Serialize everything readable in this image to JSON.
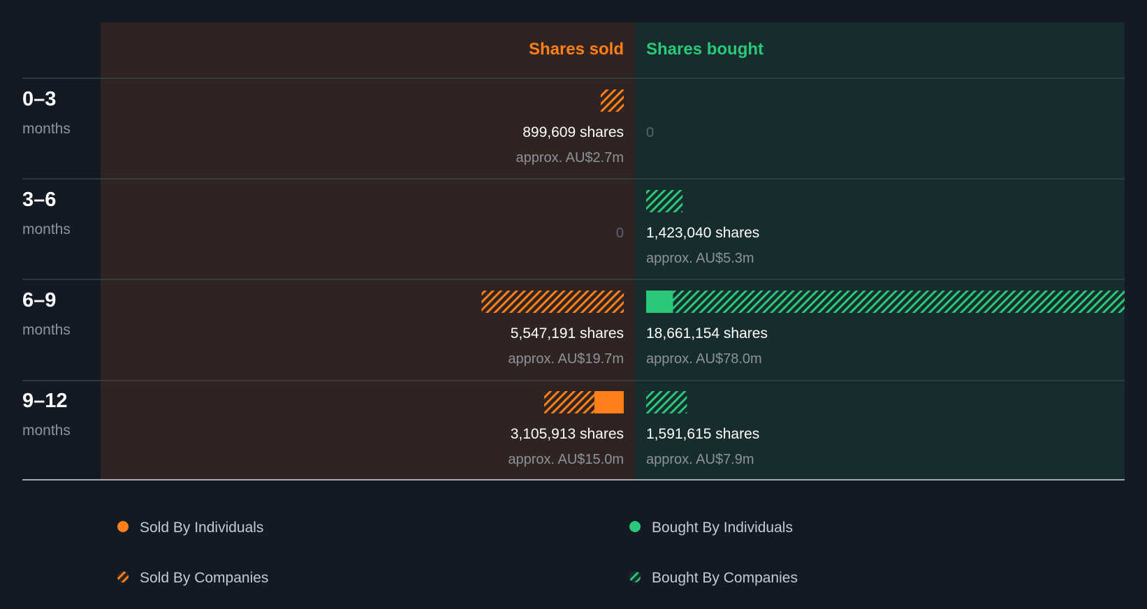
{
  "chart_data": {
    "type": "bar",
    "headers": {
      "sold": "Shares sold",
      "bought": "Shares bought"
    },
    "colors": {
      "sold": "#ff7f18",
      "bought": "#2ac97a",
      "sold_bg": "#2f2422",
      "bought_bg": "#172c2c",
      "page_bg": "#131a24"
    },
    "periods": [
      {
        "label": "0–3",
        "unit": "months",
        "sold": {
          "individuals": 0,
          "companies": 899609,
          "shares_label": "899,609 shares",
          "value_label": "approx. AU$2.7m"
        },
        "bought": {
          "individuals": 0,
          "companies": 0,
          "zero_label": "0"
        }
      },
      {
        "label": "3–6",
        "unit": "months",
        "sold": {
          "individuals": 0,
          "companies": 0,
          "zero_label": "0"
        },
        "bought": {
          "individuals": 0,
          "companies": 1423040,
          "shares_label": "1,423,040 shares",
          "value_label": "approx. AU$5.3m"
        }
      },
      {
        "label": "6–9",
        "unit": "months",
        "sold": {
          "individuals": 0,
          "companies": 5547191,
          "shares_label": "5,547,191 shares",
          "value_label": "approx. AU$19.7m"
        },
        "bought": {
          "individuals": 1050000,
          "companies": 17611154,
          "shares_label": "18,661,154 shares",
          "value_label": "approx. AU$78.0m"
        }
      },
      {
        "label": "9–12",
        "unit": "months",
        "sold": {
          "individuals": 1150000,
          "companies": 1955913,
          "shares_label": "3,105,913 shares",
          "value_label": "approx. AU$15.0m"
        },
        "bought": {
          "individuals": 0,
          "companies": 1591615,
          "shares_label": "1,591,615 shares",
          "value_label": "approx. AU$7.9m"
        }
      }
    ],
    "legend": [
      {
        "label": "Sold By Individuals",
        "side": "sold",
        "style": "solid"
      },
      {
        "label": "Sold By Companies",
        "side": "sold",
        "style": "hatched"
      },
      {
        "label": "Bought By Individuals",
        "side": "bought",
        "style": "solid"
      },
      {
        "label": "Bought By Companies",
        "side": "bought",
        "style": "hatched"
      }
    ]
  }
}
